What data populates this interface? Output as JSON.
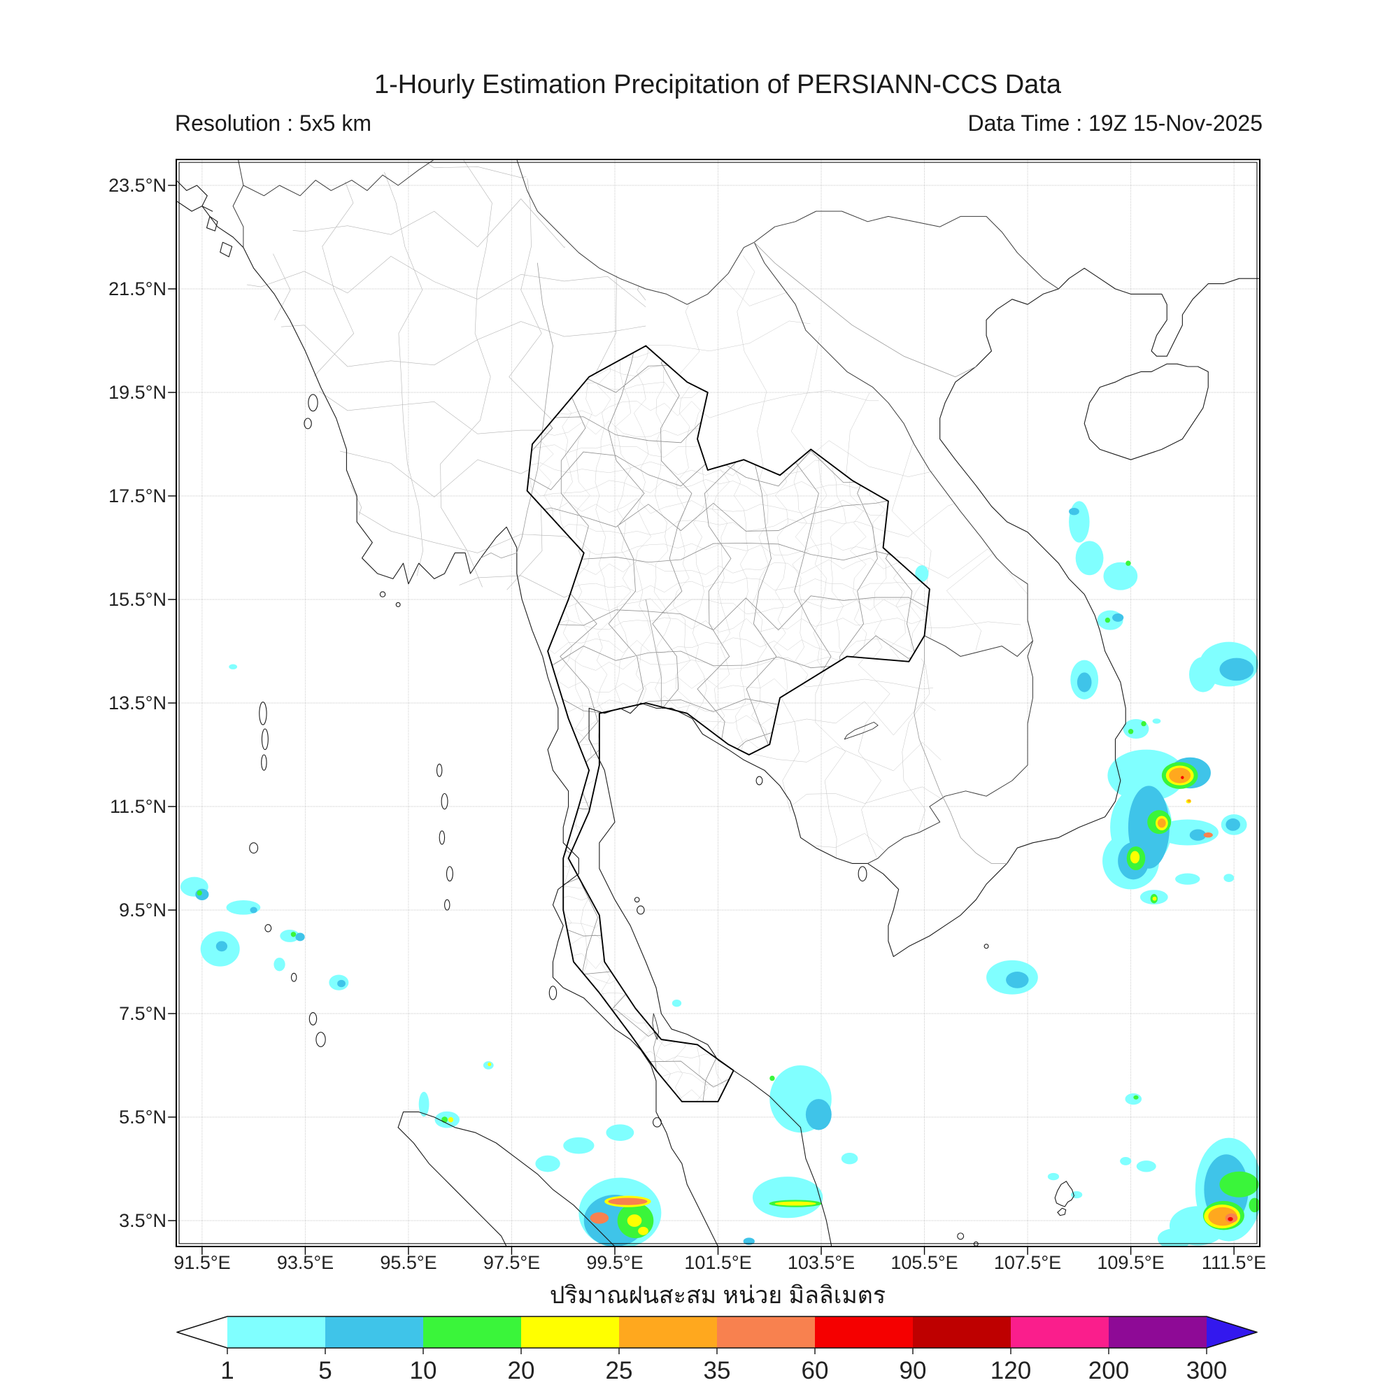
{
  "title": "1-Hourly Estimation Precipitation of PERSIANN-CCS Data",
  "subtitle_left": "Resolution : 5x5 km",
  "subtitle_right": "Data Time : 19Z 15-Nov-2025",
  "caption": "ปริมาณฝนสะสม หน่วย มิลลิเมตร",
  "axes": {
    "lat_ticks": [
      "23.5°N",
      "21.5°N",
      "19.5°N",
      "17.5°N",
      "15.5°N",
      "13.5°N",
      "11.5°N",
      "9.5°N",
      "7.5°N",
      "5.5°N",
      "3.5°N"
    ],
    "lon_ticks": [
      "91.5°E",
      "93.5°E",
      "95.5°E",
      "97.5°E",
      "99.5°E",
      "101.5°E",
      "103.5°E",
      "105.5°E",
      "107.5°E",
      "109.5°E",
      "111.5°E"
    ],
    "grid_color": "#c9c9c9"
  },
  "colorbar": {
    "labels": [
      "1",
      "5",
      "10",
      "20",
      "25",
      "35",
      "60",
      "90",
      "120",
      "200",
      "300"
    ],
    "segment_colors": [
      "#80FFFF",
      "#3FC4E9",
      "#3AF53A",
      "#FFFF00",
      "#FFA81E",
      "#F8814F",
      "#F50000",
      "#BE0000",
      "#FA1E8C",
      "#8E0A96"
    ],
    "underflow_color": "#ffffff",
    "overflow_color": "#3318EE",
    "outline_color": "#111111"
  },
  "chart_data": {
    "type": "heatmap",
    "projection": "lon-lat grid map",
    "lon_range": [
      91,
      112
    ],
    "lat_range": [
      3,
      24
    ],
    "units": "mm",
    "scale_breaks": [
      1,
      5,
      10,
      20,
      25,
      35,
      60,
      90,
      120,
      200,
      300
    ],
    "level_colors": {
      "1": "#80FFFF",
      "5": "#3FC4E9",
      "10": "#3AF53A",
      "20": "#FFFF00",
      "25": "#FFA81E",
      "35": "#F8814F",
      "60": "#F50000"
    },
    "level_order": [
      "1",
      "5",
      "10",
      "20",
      "25",
      "35",
      "60"
    ],
    "features": [
      [
        108.5,
        17.0,
        0.2,
        0.4,
        "1"
      ],
      [
        108.4,
        17.2,
        0.1,
        0.07,
        "5"
      ],
      [
        108.7,
        16.3,
        0.27,
        0.33,
        "1"
      ],
      [
        109.3,
        15.95,
        0.33,
        0.27,
        "1"
      ],
      [
        109.45,
        16.2,
        0.05,
        0.05,
        "10"
      ],
      [
        109.1,
        15.1,
        0.25,
        0.19,
        "1"
      ],
      [
        109.25,
        15.15,
        0.11,
        0.08,
        "5"
      ],
      [
        109.05,
        15.1,
        0.05,
        0.05,
        "10"
      ],
      [
        108.6,
        13.95,
        0.27,
        0.38,
        "1"
      ],
      [
        108.6,
        13.9,
        0.14,
        0.19,
        "5"
      ],
      [
        109.6,
        13.0,
        0.25,
        0.19,
        "1"
      ],
      [
        109.75,
        13.1,
        0.05,
        0.05,
        "10"
      ],
      [
        109.5,
        12.95,
        0.05,
        0.05,
        "10"
      ],
      [
        110.0,
        13.15,
        0.08,
        0.05,
        "1"
      ],
      [
        111.4,
        14.25,
        0.57,
        0.43,
        "1"
      ],
      [
        110.9,
        14.05,
        0.27,
        0.34,
        "1"
      ],
      [
        111.55,
        14.15,
        0.33,
        0.22,
        "5"
      ],
      [
        109.8,
        12.1,
        0.75,
        0.5,
        "1"
      ],
      [
        109.7,
        11.1,
        0.6,
        0.8,
        "1"
      ],
      [
        109.5,
        10.45,
        0.55,
        0.55,
        "1"
      ],
      [
        110.6,
        11.0,
        0.6,
        0.25,
        "1"
      ],
      [
        111.5,
        11.15,
        0.25,
        0.2,
        "1"
      ],
      [
        110.65,
        12.15,
        0.4,
        0.3,
        "5"
      ],
      [
        109.85,
        11.1,
        0.4,
        0.8,
        "5"
      ],
      [
        109.55,
        10.45,
        0.3,
        0.36,
        "5"
      ],
      [
        110.8,
        10.95,
        0.16,
        0.11,
        "5"
      ],
      [
        110.45,
        12.1,
        0.35,
        0.26,
        "10"
      ],
      [
        110.05,
        11.2,
        0.23,
        0.23,
        "10"
      ],
      [
        109.6,
        10.5,
        0.18,
        0.23,
        "10"
      ],
      [
        110.45,
        12.1,
        0.27,
        0.19,
        "20"
      ],
      [
        110.1,
        11.18,
        0.12,
        0.14,
        "20"
      ],
      [
        109.58,
        10.52,
        0.09,
        0.12,
        "20"
      ],
      [
        110.45,
        12.1,
        0.21,
        0.15,
        "25"
      ],
      [
        110.1,
        11.18,
        0.08,
        0.09,
        "25"
      ],
      [
        110.62,
        11.6,
        0.05,
        0.04,
        "20"
      ],
      [
        110.63,
        11.61,
        0.035,
        0.03,
        "25"
      ],
      [
        110.5,
        12.06,
        0.03,
        0.03,
        "60"
      ],
      [
        111.0,
        10.95,
        0.09,
        0.05,
        "35"
      ],
      [
        109.95,
        9.75,
        0.27,
        0.14,
        "1"
      ],
      [
        109.95,
        9.72,
        0.07,
        0.09,
        "10"
      ],
      [
        109.96,
        9.72,
        0.04,
        0.04,
        "20"
      ],
      [
        110.6,
        10.1,
        0.24,
        0.11,
        "1"
      ],
      [
        111.4,
        10.12,
        0.1,
        0.08,
        "1"
      ],
      [
        111.48,
        11.15,
        0.14,
        0.12,
        "5"
      ],
      [
        107.2,
        8.2,
        0.5,
        0.33,
        "1"
      ],
      [
        107.3,
        8.15,
        0.22,
        0.16,
        "5"
      ],
      [
        105.45,
        16.0,
        0.13,
        0.16,
        "1"
      ],
      [
        111.4,
        4.1,
        0.65,
        1.0,
        "1"
      ],
      [
        110.8,
        3.4,
        0.55,
        0.38,
        "1"
      ],
      [
        110.35,
        3.15,
        0.33,
        0.2,
        "1"
      ],
      [
        111.35,
        4.1,
        0.43,
        0.68,
        "5"
      ],
      [
        111.6,
        4.2,
        0.38,
        0.25,
        "10"
      ],
      [
        111.3,
        3.6,
        0.4,
        0.28,
        "10"
      ],
      [
        111.27,
        3.58,
        0.35,
        0.23,
        "20"
      ],
      [
        111.28,
        3.58,
        0.28,
        0.18,
        "25"
      ],
      [
        111.45,
        3.55,
        0.12,
        0.09,
        "35"
      ],
      [
        111.43,
        3.53,
        0.05,
        0.04,
        "60"
      ],
      [
        111.9,
        3.8,
        0.11,
        0.14,
        "10"
      ],
      [
        109.55,
        5.85,
        0.16,
        0.11,
        "1"
      ],
      [
        109.6,
        5.88,
        0.05,
        0.04,
        "10"
      ],
      [
        109.8,
        4.55,
        0.19,
        0.11,
        "1"
      ],
      [
        109.4,
        4.65,
        0.11,
        0.08,
        "1"
      ],
      [
        108.0,
        4.35,
        0.11,
        0.07,
        "1"
      ],
      [
        108.45,
        4.0,
        0.11,
        0.07,
        "1"
      ],
      [
        103.1,
        5.85,
        0.6,
        0.65,
        "1"
      ],
      [
        103.45,
        5.55,
        0.25,
        0.3,
        "5"
      ],
      [
        102.55,
        6.25,
        0.05,
        0.05,
        "10"
      ],
      [
        102.85,
        3.95,
        0.68,
        0.4,
        "1"
      ],
      [
        103.0,
        3.83,
        0.51,
        0.07,
        "10"
      ],
      [
        103.0,
        3.83,
        0.4,
        0.04,
        "20"
      ],
      [
        102.1,
        3.1,
        0.11,
        0.07,
        "5"
      ],
      [
        104.05,
        4.7,
        0.16,
        0.11,
        "1"
      ],
      [
        99.6,
        3.65,
        0.8,
        0.68,
        "1"
      ],
      [
        99.5,
        3.5,
        0.6,
        0.5,
        "5"
      ],
      [
        99.9,
        3.5,
        0.35,
        0.34,
        "10"
      ],
      [
        99.88,
        3.5,
        0.14,
        0.12,
        "20"
      ],
      [
        100.05,
        3.3,
        0.1,
        0.08,
        "20"
      ],
      [
        99.75,
        3.87,
        0.45,
        0.11,
        "20"
      ],
      [
        99.75,
        3.87,
        0.38,
        0.07,
        "35"
      ],
      [
        99.2,
        3.55,
        0.18,
        0.11,
        "35"
      ],
      [
        98.8,
        4.95,
        0.3,
        0.16,
        "1"
      ],
      [
        99.6,
        5.2,
        0.27,
        0.16,
        "1"
      ],
      [
        98.2,
        4.6,
        0.24,
        0.16,
        "1"
      ],
      [
        96.25,
        5.45,
        0.24,
        0.16,
        "1"
      ],
      [
        96.2,
        5.45,
        0.06,
        0.06,
        "10"
      ],
      [
        96.32,
        5.45,
        0.05,
        0.05,
        "20"
      ],
      [
        95.8,
        5.75,
        0.1,
        0.24,
        "1"
      ],
      [
        97.05,
        6.5,
        0.1,
        0.08,
        "1"
      ],
      [
        97.07,
        6.52,
        0.035,
        0.035,
        "20"
      ],
      [
        91.35,
        9.95,
        0.27,
        0.19,
        "1"
      ],
      [
        91.5,
        9.8,
        0.13,
        0.11,
        "5"
      ],
      [
        91.45,
        9.83,
        0.05,
        0.05,
        "10"
      ],
      [
        92.3,
        9.55,
        0.33,
        0.14,
        "1"
      ],
      [
        92.5,
        9.5,
        0.07,
        0.06,
        "5"
      ],
      [
        91.85,
        8.75,
        0.38,
        0.34,
        "1"
      ],
      [
        91.88,
        8.8,
        0.11,
        0.1,
        "5"
      ],
      [
        93.2,
        9.0,
        0.19,
        0.12,
        "1"
      ],
      [
        93.4,
        8.98,
        0.09,
        0.08,
        "5"
      ],
      [
        93.27,
        9.03,
        0.05,
        0.05,
        "10"
      ],
      [
        93.0,
        8.45,
        0.11,
        0.13,
        "1"
      ],
      [
        94.15,
        8.1,
        0.19,
        0.15,
        "1"
      ],
      [
        94.2,
        8.08,
        0.08,
        0.07,
        "5"
      ],
      [
        92.1,
        14.2,
        0.08,
        0.05,
        "1"
      ],
      [
        100.7,
        7.7,
        0.09,
        0.07,
        "1"
      ]
    ]
  }
}
